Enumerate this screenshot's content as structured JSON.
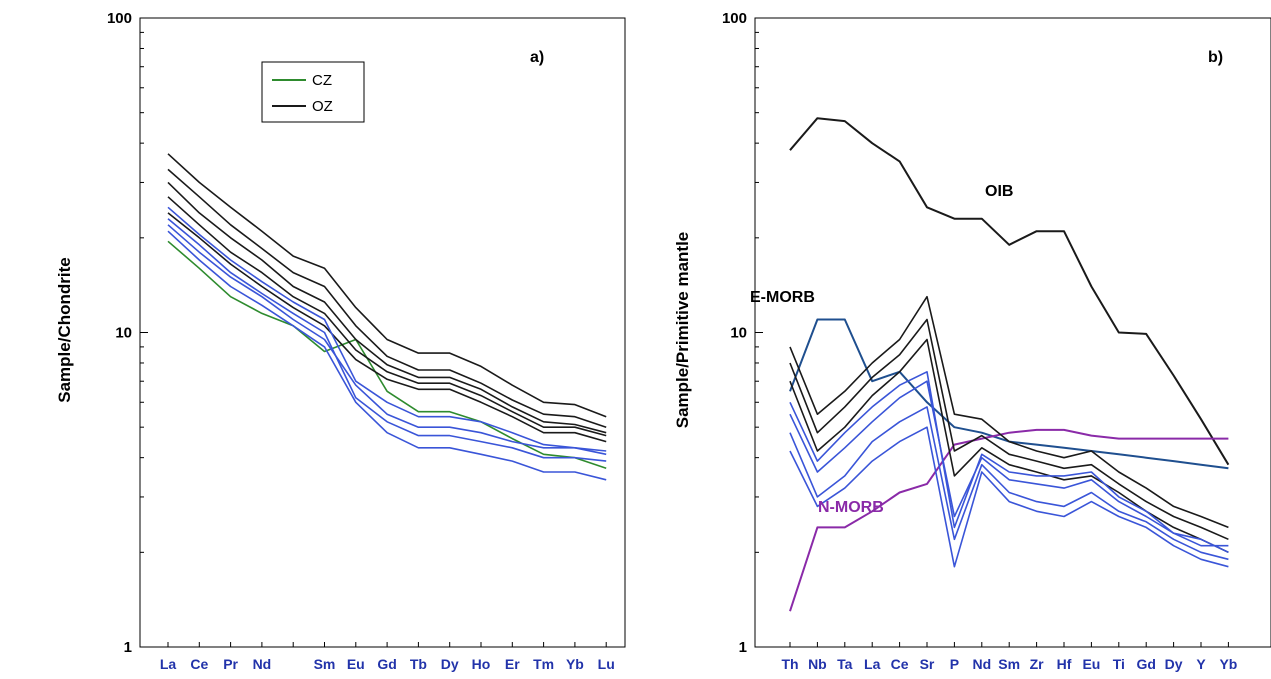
{
  "chart_data": [
    {
      "type": "line",
      "panel_label": "a)",
      "ylabel": "Sample/Chondrite",
      "y_scale": "log",
      "ylim": [
        1,
        100
      ],
      "y_ticks": [
        "100",
        "10",
        "1"
      ],
      "categories": [
        "La",
        "Ce",
        "Pr",
        "Nd",
        "",
        "Sm",
        "Eu",
        "Gd",
        "Tb",
        "Dy",
        "Ho",
        "Er",
        "Tm",
        "Yb",
        "Lu"
      ],
      "grid": false,
      "legend": {
        "position": "top-center",
        "entries": [
          "CZ",
          "OZ"
        ]
      },
      "series": [
        {
          "name": "CZ",
          "color": "#2e8b2e",
          "values": [
            19.5,
            16.0,
            13.0,
            11.5,
            10.5,
            8.7,
            9.5,
            6.5,
            5.6,
            5.6,
            5.2,
            4.6,
            4.1,
            4.0,
            3.7
          ]
        },
        {
          "name": "OZ",
          "color": "#1a1a1a",
          "values": [
            37,
            30,
            25,
            21,
            17.5,
            16,
            12,
            9.5,
            8.6,
            8.6,
            7.8,
            6.8,
            6.0,
            5.9,
            5.4
          ]
        },
        {
          "color": "#1a1a1a",
          "values": [
            33,
            27,
            22,
            18.5,
            15.5,
            14,
            10.5,
            8.4,
            7.6,
            7.6,
            6.9,
            6.1,
            5.5,
            5.4,
            5.0
          ]
        },
        {
          "color": "#1a1a1a",
          "values": [
            30,
            24,
            20,
            17,
            14,
            12.5,
            9.5,
            7.9,
            7.2,
            7.2,
            6.6,
            5.8,
            5.2,
            5.1,
            4.8
          ]
        },
        {
          "color": "#1a1a1a",
          "values": [
            27,
            22,
            18,
            15.5,
            13,
            11.5,
            8.8,
            7.5,
            6.9,
            6.9,
            6.3,
            5.6,
            5.0,
            5.0,
            4.7
          ]
        },
        {
          "color": "#1a1a1a",
          "values": [
            24,
            20,
            16.5,
            14,
            12,
            10.5,
            8.2,
            7.1,
            6.6,
            6.6,
            6.0,
            5.4,
            4.8,
            4.8,
            4.5
          ]
        },
        {
          "color": "#3a55d8",
          "values": [
            22,
            18,
            15,
            13,
            11,
            9.5,
            6.8,
            5.5,
            5.0,
            5.0,
            4.8,
            4.5,
            4.3,
            4.3,
            4.2
          ]
        },
        {
          "color": "#3a55d8",
          "values": [
            21,
            17,
            14,
            12.2,
            10.5,
            9.0,
            6.0,
            4.8,
            4.3,
            4.3,
            4.1,
            3.9,
            3.6,
            3.6,
            3.4
          ]
        },
        {
          "color": "#3a55d8",
          "values": [
            25,
            20.5,
            17,
            14.5,
            12.5,
            11,
            7.0,
            6.0,
            5.4,
            5.4,
            5.2,
            4.8,
            4.4,
            4.3,
            4.1
          ]
        },
        {
          "color": "#3a55d8",
          "values": [
            23,
            19,
            15.5,
            13.3,
            11.5,
            10,
            6.2,
            5.2,
            4.7,
            4.7,
            4.5,
            4.3,
            4.0,
            4.0,
            3.9
          ]
        }
      ]
    },
    {
      "type": "line",
      "panel_label": "b)",
      "ylabel": "Sample/Primitive mantle",
      "y_scale": "log",
      "ylim": [
        1,
        100
      ],
      "y_ticks": [
        "100",
        "10",
        "1"
      ],
      "categories": [
        "Th",
        "Nb",
        "Ta",
        "La",
        "Ce",
        "Sr",
        "P",
        "Nd",
        "Sm",
        "Zr",
        "Hf",
        "Eu",
        "Ti",
        "Gd",
        "Dy",
        "Y",
        "Yb"
      ],
      "grid": false,
      "annotations": [
        "OIB",
        "E-MORB",
        "N-MORB"
      ],
      "series": [
        {
          "name": "OIB",
          "color": "#1a1a1a",
          "values": [
            38,
            48,
            47,
            40,
            35,
            25,
            23,
            23,
            19,
            21,
            21,
            14,
            10,
            9.9,
            7.3,
            5.3,
            3.8
          ]
        },
        {
          "name": "E-MORB",
          "color": "#1f4f8f",
          "values": [
            6.5,
            11,
            11,
            7.0,
            7.5,
            6.0,
            5.0,
            4.8,
            4.5,
            4.4,
            4.3,
            4.2,
            4.1,
            4.0,
            3.9,
            3.8,
            3.7
          ]
        },
        {
          "name": "N-MORB",
          "color": "#8a2aa8",
          "values": [
            1.3,
            2.4,
            2.4,
            2.7,
            3.1,
            3.3,
            4.4,
            4.6,
            4.8,
            4.9,
            4.9,
            4.7,
            4.6,
            4.6,
            4.6,
            4.6,
            4.6
          ]
        },
        {
          "color": "#1a1a1a",
          "values": [
            9.0,
            5.5,
            6.5,
            8.0,
            9.5,
            13,
            5.5,
            5.3,
            4.5,
            4.2,
            4.0,
            4.2,
            3.6,
            3.2,
            2.8,
            2.6,
            2.4
          ]
        },
        {
          "color": "#1a1a1a",
          "values": [
            8.0,
            4.8,
            5.8,
            7.2,
            8.5,
            11,
            4.2,
            4.7,
            4.1,
            3.9,
            3.7,
            3.8,
            3.3,
            2.9,
            2.6,
            2.4,
            2.2
          ]
        },
        {
          "color": "#1a1a1a",
          "values": [
            7.0,
            4.2,
            5.0,
            6.3,
            7.5,
            9.5,
            3.5,
            4.3,
            3.8,
            3.6,
            3.4,
            3.5,
            3.1,
            2.7,
            2.4,
            2.2,
            2.0
          ]
        },
        {
          "color": "#3a55d8",
          "values": [
            5.5,
            3.6,
            4.3,
            5.2,
            6.2,
            7.0,
            2.6,
            4.0,
            3.4,
            3.3,
            3.2,
            3.4,
            2.9,
            2.6,
            2.3,
            2.1,
            2.1
          ]
        },
        {
          "color": "#3a55d8",
          "values": [
            4.8,
            3.0,
            3.5,
            4.5,
            5.2,
            5.8,
            2.2,
            3.8,
            3.1,
            2.9,
            2.8,
            3.1,
            2.7,
            2.5,
            2.2,
            2.0,
            1.9
          ]
        },
        {
          "color": "#3a55d8",
          "values": [
            4.2,
            2.8,
            3.2,
            3.9,
            4.5,
            5.0,
            1.8,
            3.6,
            2.9,
            2.7,
            2.6,
            2.9,
            2.6,
            2.4,
            2.1,
            1.9,
            1.8
          ]
        },
        {
          "color": "#3a55d8",
          "values": [
            6.0,
            3.9,
            4.8,
            5.8,
            6.8,
            7.5,
            2.4,
            4.1,
            3.6,
            3.5,
            3.5,
            3.6,
            3.0,
            2.7,
            2.3,
            2.2,
            2.0
          ]
        }
      ]
    }
  ]
}
